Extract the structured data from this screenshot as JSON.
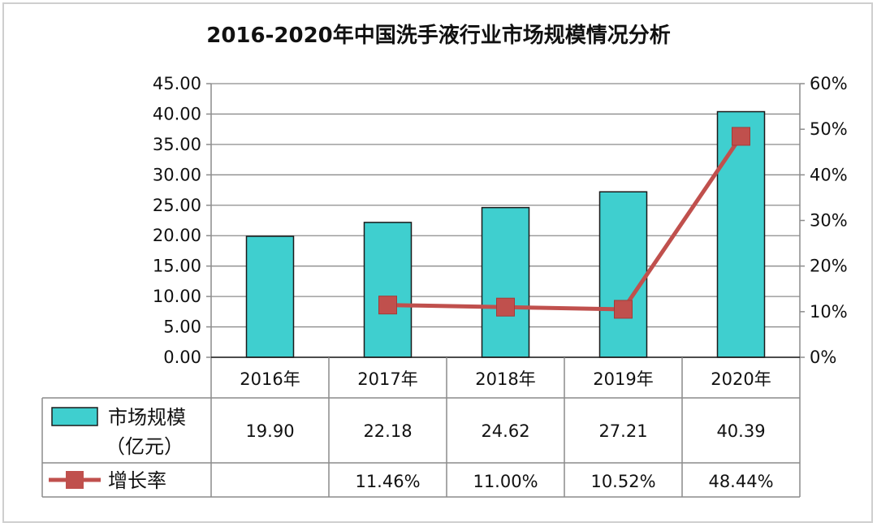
{
  "chart_data": {
    "type": "bar",
    "title": "2016-2020年中国洗手液行业市场规模情况分析",
    "categories": [
      "2016年",
      "2017年",
      "2018年",
      "2019年",
      "2020年"
    ],
    "series": [
      {
        "name": "市场规模",
        "name_line2": "（亿元）",
        "type": "bar",
        "axis": "left",
        "color": "#3fcfcf",
        "values": [
          19.9,
          22.18,
          24.62,
          27.21,
          40.39
        ],
        "labels": [
          "19.90",
          "22.18",
          "24.62",
          "27.21",
          "40.39"
        ]
      },
      {
        "name": "增长率",
        "type": "line",
        "axis": "right",
        "color": "#c0504d",
        "values": [
          null,
          11.46,
          11.0,
          10.52,
          48.44
        ],
        "labels": [
          "",
          "11.46%",
          "11.00%",
          "10.52%",
          "48.44%"
        ]
      }
    ],
    "y_left": {
      "min": 0,
      "max": 45,
      "step": 5,
      "tick_labels": [
        "0.00",
        "5.00",
        "10.00",
        "15.00",
        "20.00",
        "25.00",
        "30.00",
        "35.00",
        "40.00",
        "45.00"
      ]
    },
    "y_right": {
      "min": 0,
      "max": 60,
      "step": 10,
      "tick_labels": [
        "0%",
        "10%",
        "20%",
        "30%",
        "40%",
        "50%",
        "60%"
      ]
    },
    "grid": true,
    "legend": "data-table"
  }
}
